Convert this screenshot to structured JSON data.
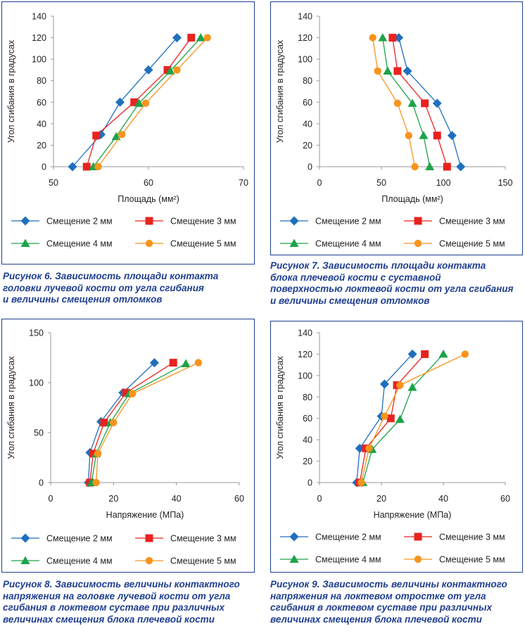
{
  "colors": {
    "frame": "#1f3f8f",
    "caption": "#1f3f8f",
    "series": [
      "#1f6fbf",
      "#e8231f",
      "#1ea34a",
      "#f7941d"
    ]
  },
  "legend_markers": [
    "diamond",
    "square",
    "triangle",
    "circle"
  ],
  "chart_data": [
    {
      "type": "line",
      "ylabel": "Угол сгибания в градусах",
      "xlabel": "Площадь (мм²)",
      "xlim": [
        50,
        70
      ],
      "xticks": [
        50,
        60,
        70
      ],
      "ylim": [
        0,
        140
      ],
      "yticks": [
        0,
        20,
        40,
        60,
        80,
        100,
        120,
        140
      ],
      "grid": false,
      "legend": "bottom",
      "series": [
        {
          "name": "Смещение 2 мм",
          "x": [
            52,
            55,
            57,
            60,
            63
          ],
          "y": [
            0,
            30,
            60,
            90,
            120
          ]
        },
        {
          "name": "Смещение 3 мм",
          "x": [
            53.5,
            54.5,
            58.5,
            62,
            64.5
          ],
          "y": [
            0,
            29,
            60,
            90,
            120
          ]
        },
        {
          "name": "Смещение 4 мм",
          "x": [
            54.2,
            56.6,
            59,
            62.3,
            65.5
          ],
          "y": [
            0,
            28,
            59,
            89,
            120
          ]
        },
        {
          "name": "Смещение 5 мм",
          "x": [
            54.7,
            57.2,
            59.7,
            63,
            66.2
          ],
          "y": [
            0,
            30,
            59,
            90,
            120
          ]
        }
      ]
    },
    {
      "type": "line",
      "ylabel": "Угол сгибания в градусах",
      "xlabel": "Площадь (мм²)",
      "xlim": [
        0,
        150
      ],
      "xticks": [
        0,
        50,
        100,
        150
      ],
      "ylim": [
        0,
        140
      ],
      "yticks": [
        0,
        20,
        40,
        60,
        80,
        100,
        120,
        140
      ],
      "grid": false,
      "legend": "bottom",
      "series": [
        {
          "name": "Смещение 2 мм",
          "x": [
            114,
            107,
            95,
            71,
            64
          ],
          "y": [
            0,
            29,
            59,
            89,
            120
          ]
        },
        {
          "name": "Смещение 3 мм",
          "x": [
            103,
            95,
            85,
            63,
            59
          ],
          "y": [
            0,
            29,
            59,
            89,
            120
          ]
        },
        {
          "name": "Смещение 4 мм",
          "x": [
            89,
            84,
            75,
            55,
            51
          ],
          "y": [
            0,
            29,
            59,
            89,
            120
          ]
        },
        {
          "name": "Смещение 5 мм",
          "x": [
            77,
            72,
            63,
            47,
            43
          ],
          "y": [
            0,
            29,
            59,
            89,
            120
          ]
        }
      ]
    },
    {
      "type": "line",
      "ylabel": "Угол сгибания в градусах",
      "xlabel": "Напряжение (МПа)",
      "xlim": [
        0,
        60
      ],
      "xticks": [
        0,
        20,
        40,
        60
      ],
      "ylim": [
        0,
        150
      ],
      "yticks": [
        0,
        50,
        100,
        150
      ],
      "grid": false,
      "legend": "bottom",
      "series": [
        {
          "name": "Смещение 2 мм",
          "x": [
            12,
            12.5,
            16,
            23,
            33
          ],
          "y": [
            0,
            30,
            61,
            90,
            120
          ]
        },
        {
          "name": "Смещение 3 мм",
          "x": [
            12.5,
            13.5,
            17,
            24,
            39
          ],
          "y": [
            0,
            29,
            60,
            90,
            120
          ]
        },
        {
          "name": "Смещение 4 мм",
          "x": [
            13,
            14.5,
            19,
            25,
            43
          ],
          "y": [
            0,
            29,
            60,
            89,
            119
          ]
        },
        {
          "name": "Смещение 5 мм",
          "x": [
            14.5,
            15,
            20,
            26,
            47
          ],
          "y": [
            0,
            29,
            60,
            89,
            120
          ]
        }
      ]
    },
    {
      "type": "line",
      "ylabel": "Угол сгибания в градусах",
      "xlabel": "Напряжение (МПа)",
      "xlim": [
        0,
        60
      ],
      "xticks": [
        0,
        20,
        40,
        60
      ],
      "ylim": [
        0,
        140
      ],
      "yticks": [
        0,
        20,
        40,
        60,
        80,
        100,
        120,
        140
      ],
      "grid": false,
      "legend": "bottom",
      "series": [
        {
          "name": "Смещение 2 мм",
          "x": [
            12,
            13,
            20,
            21,
            30
          ],
          "y": [
            0,
            32,
            62,
            92,
            120
          ]
        },
        {
          "name": "Смещение 3 мм",
          "x": [
            13,
            15,
            23,
            25,
            34
          ],
          "y": [
            0,
            32,
            60,
            91,
            120
          ]
        },
        {
          "name": "Смещение 4 мм",
          "x": [
            14,
            17,
            26,
            30,
            40
          ],
          "y": [
            0,
            31,
            59,
            89,
            120
          ]
        },
        {
          "name": "Смещение 5 мм",
          "x": [
            13.5,
            16,
            21,
            26,
            47
          ],
          "y": [
            0,
            32,
            62,
            91,
            120
          ]
        }
      ]
    }
  ],
  "captions": [
    [
      "Рисунок 6. Зависимость площади контакта",
      "головки лучевой кости от угла сгибания",
      "и величины смещения отломков"
    ],
    [
      "Рисунок 7. Зависимость площади контакта",
      "блока плечевой кости с суставной",
      "поверхностью локтевой кости от угла сгибания",
      "и величины смещения отломков"
    ],
    [
      "Рисунок 8. Зависимость величины контактного",
      "напряжения на головке лучевой кости от угла",
      "сгибания в локтевом суставе при различных",
      "величинах смещения блока плечевой кости"
    ],
    [
      "Рисунок 9. Зависимость величины контактного",
      "напряжения на локтевом отростке от угла",
      "сгибания в локтевом суставе при различных",
      "величинах смещения блока плечевой кости"
    ]
  ]
}
